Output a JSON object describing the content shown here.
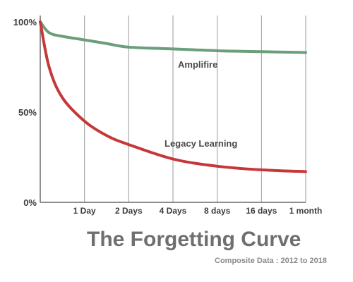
{
  "chart_data": {
    "type": "line",
    "title": "The Forgetting Curve",
    "subtitle": "Composite Data : 2012 to 2018",
    "xlabel": "",
    "ylabel": "",
    "x_ticks": [
      "1 Day",
      "2 Days",
      "4 Days",
      "8 days",
      "16 days",
      "1 month"
    ],
    "y_ticks": [
      "0%",
      "50%",
      "100%"
    ],
    "ylim": [
      0,
      100
    ],
    "grid": "vertical",
    "series": [
      {
        "name": "Amplifire",
        "color": "#6b9e7a",
        "x": [
          0,
          0.2,
          0.5,
          1,
          1.5,
          2,
          3,
          4,
          5,
          6
        ],
        "values": [
          100,
          94,
          92,
          90,
          88,
          86,
          85,
          84,
          83.5,
          83
        ]
      },
      {
        "name": "Legacy Learning",
        "color": "#c63838",
        "x": [
          0,
          0.2,
          0.5,
          1,
          1.5,
          2,
          3,
          4,
          5,
          6
        ],
        "values": [
          100,
          75,
          58,
          45,
          37,
          32,
          24,
          20,
          18,
          17
        ]
      }
    ]
  }
}
